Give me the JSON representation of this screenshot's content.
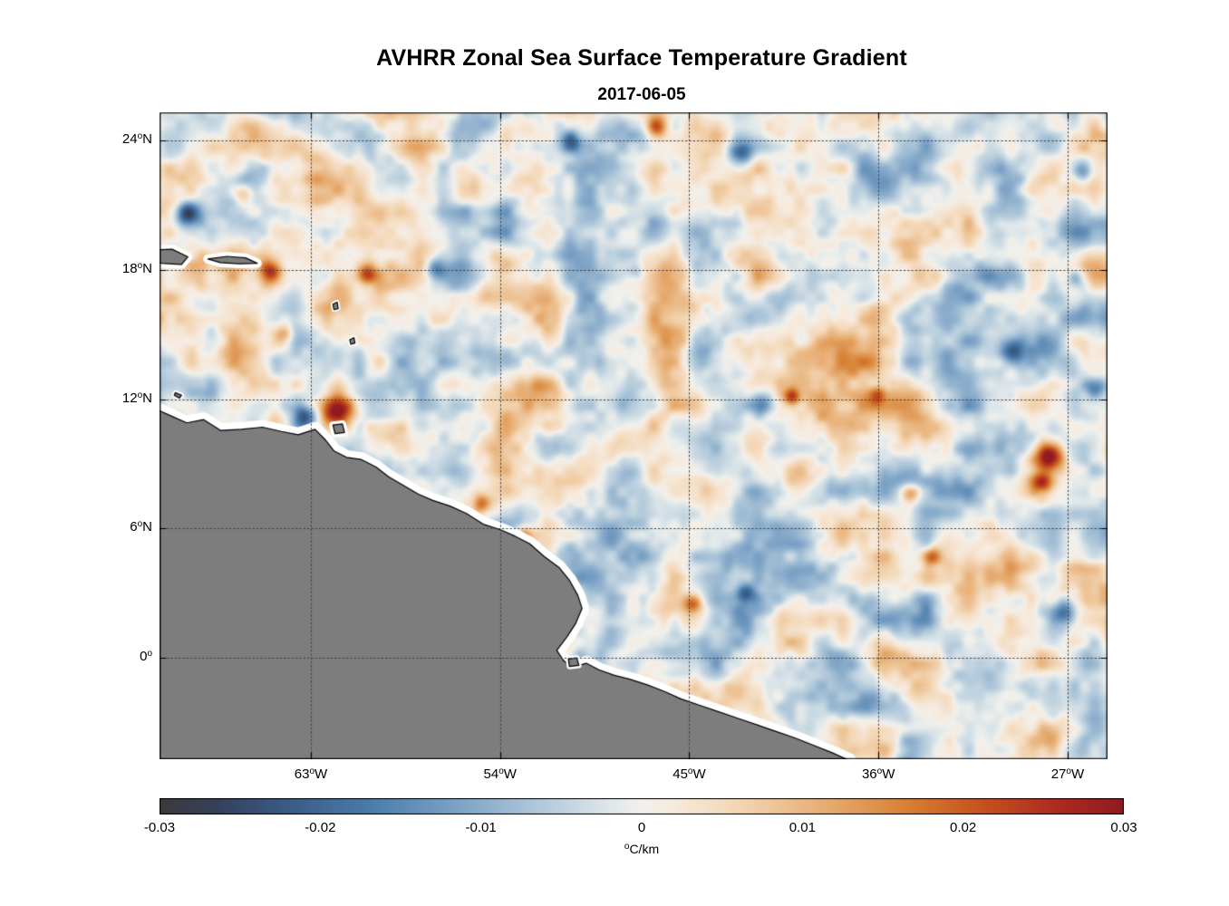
{
  "chart_data": {
    "type": "heatmap",
    "title": "AVHRR Zonal Sea Surface Temperature Gradient",
    "subtitle": "2017-06-05",
    "units": "°C/km",
    "axes": {
      "lon_range": [
        -70.2,
        -25.1
      ],
      "lat_range": [
        -4.7,
        25.3
      ],
      "x_ticks": [
        {
          "value": -63,
          "label": "63°W"
        },
        {
          "value": -54,
          "label": "54°W"
        },
        {
          "value": -45,
          "label": "45°W"
        },
        {
          "value": -36,
          "label": "36°W"
        },
        {
          "value": -27,
          "label": "27°W"
        }
      ],
      "y_ticks": [
        {
          "value": 24,
          "label": "24°N"
        },
        {
          "value": 18,
          "label": "18°N"
        },
        {
          "value": 12,
          "label": "12°N"
        },
        {
          "value": 6,
          "label": "6°N"
        },
        {
          "value": 0,
          "label": "0°"
        }
      ],
      "grid": true,
      "grid_color": "#404040"
    },
    "colorbar": {
      "min": -0.03,
      "max": 0.03,
      "tick_labels": [
        "-0.03",
        "-0.02",
        "-0.01",
        "0",
        "0.01",
        "0.02",
        "0.03"
      ],
      "units": "°C/km",
      "stops": [
        [
          0.0,
          "#3a3a3a"
        ],
        [
          0.06,
          "#34405c"
        ],
        [
          0.14,
          "#3a5e88"
        ],
        [
          0.22,
          "#4b7cab"
        ],
        [
          0.31,
          "#7da3c6"
        ],
        [
          0.4,
          "#b4cbdc"
        ],
        [
          0.47,
          "#e0e8ea"
        ],
        [
          0.5,
          "#f2f1ec"
        ],
        [
          0.53,
          "#f7ebdf"
        ],
        [
          0.6,
          "#f3d6b4"
        ],
        [
          0.69,
          "#e7ad72"
        ],
        [
          0.77,
          "#d98336"
        ],
        [
          0.85,
          "#c6531e"
        ],
        [
          0.93,
          "#ad2b20"
        ],
        [
          1.0,
          "#8f1a1f"
        ]
      ]
    },
    "field": {
      "seed": 77,
      "amplitude": 0.018,
      "broad_amplitude": 0.004,
      "scale_deg": 2.0,
      "octaves": 3,
      "features": [
        {
          "lon": -61.7,
          "lat": 11.5,
          "amp": 0.034,
          "r": 0.75
        },
        {
          "lon": -63.3,
          "lat": 11.15,
          "amp": -0.024,
          "r": 0.6
        },
        {
          "lon": -64.9,
          "lat": 17.9,
          "amp": 0.022,
          "r": 0.55
        },
        {
          "lon": -60.4,
          "lat": 17.8,
          "amp": 0.02,
          "r": 0.5
        },
        {
          "lon": -64.3,
          "lat": 14.9,
          "amp": 0.016,
          "r": 0.5
        },
        {
          "lon": -68.9,
          "lat": 20.6,
          "amp": -0.022,
          "r": 0.55
        },
        {
          "lon": -66.2,
          "lat": 21.4,
          "amp": 0.014,
          "r": 0.5
        },
        {
          "lon": -27.9,
          "lat": 9.3,
          "amp": 0.032,
          "r": 0.65
        },
        {
          "lon": -28.2,
          "lat": 8.1,
          "amp": 0.018,
          "r": 0.5
        },
        {
          "lon": -29.6,
          "lat": 14.2,
          "amp": -0.018,
          "r": 0.55
        },
        {
          "lon": -26.6,
          "lat": 17.6,
          "amp": -0.016,
          "r": 0.5
        },
        {
          "lon": -26.3,
          "lat": 22.6,
          "amp": -0.016,
          "r": 0.5
        },
        {
          "lon": -25.7,
          "lat": 12.6,
          "amp": -0.018,
          "r": 0.5
        },
        {
          "lon": -27.1,
          "lat": 2.1,
          "amp": -0.018,
          "r": 0.6
        },
        {
          "lon": -33.5,
          "lat": 4.7,
          "amp": 0.02,
          "r": 0.45
        },
        {
          "lon": -34.5,
          "lat": 7.6,
          "amp": 0.02,
          "r": 0.5
        },
        {
          "lon": -41.6,
          "lat": 11.7,
          "amp": -0.02,
          "r": 0.55
        },
        {
          "lon": -40.1,
          "lat": 12.1,
          "amp": 0.018,
          "r": 0.4
        },
        {
          "lon": -36.1,
          "lat": 12.2,
          "amp": 0.016,
          "r": 0.4
        },
        {
          "lon": -44.8,
          "lat": 2.5,
          "amp": 0.02,
          "r": 0.45
        },
        {
          "lon": -42.3,
          "lat": 3.0,
          "amp": -0.015,
          "r": 0.45
        },
        {
          "lon": -46.5,
          "lat": 24.6,
          "amp": 0.018,
          "r": 0.5
        },
        {
          "lon": -42.6,
          "lat": 23.4,
          "amp": -0.02,
          "r": 0.55
        },
        {
          "lon": -50.6,
          "lat": 23.9,
          "amp": -0.018,
          "r": 0.5
        },
        {
          "lon": -54.9,
          "lat": 7.15,
          "amp": 0.018,
          "r": 0.45
        },
        {
          "lon": -52.9,
          "lat": 5.6,
          "amp": 0.022,
          "r": 0.45
        },
        {
          "lon": -57.1,
          "lat": 18.1,
          "amp": -0.015,
          "r": 0.5
        },
        {
          "lon": -47.6,
          "lat": 17.9,
          "amp": -0.013,
          "r": 0.45
        }
      ]
    },
    "land": {
      "color": "#7d7d7d",
      "outline": "#000000",
      "coast_halo": "#ffffff",
      "coastline": [
        [
          -70.4,
          11.55
        ],
        [
          -69.6,
          11.2
        ],
        [
          -68.9,
          10.9
        ],
        [
          -68.1,
          11.05
        ],
        [
          -67.3,
          10.55
        ],
        [
          -66.3,
          10.6
        ],
        [
          -65.3,
          10.7
        ],
        [
          -64.4,
          10.5
        ],
        [
          -63.6,
          10.35
        ],
        [
          -62.8,
          10.6
        ],
        [
          -62.3,
          10.1
        ],
        [
          -61.9,
          9.6
        ],
        [
          -61.3,
          9.3
        ],
        [
          -60.6,
          9.2
        ],
        [
          -59.9,
          8.85
        ],
        [
          -59.3,
          8.4
        ],
        [
          -58.6,
          8.0
        ],
        [
          -57.9,
          7.6
        ],
        [
          -57.2,
          7.3
        ],
        [
          -56.4,
          7.05
        ],
        [
          -55.6,
          6.7
        ],
        [
          -54.8,
          6.2
        ],
        [
          -54.0,
          5.95
        ],
        [
          -53.3,
          5.65
        ],
        [
          -52.6,
          5.3
        ],
        [
          -51.9,
          4.7
        ],
        [
          -51.2,
          4.2
        ],
        [
          -50.7,
          3.6
        ],
        [
          -50.3,
          2.9
        ],
        [
          -50.1,
          2.3
        ],
        [
          -50.4,
          1.6
        ],
        [
          -50.8,
          1.0
        ],
        [
          -51.3,
          0.35
        ],
        [
          -51.0,
          -0.1
        ],
        [
          -50.6,
          -0.45
        ],
        [
          -49.9,
          -0.25
        ],
        [
          -49.3,
          -0.55
        ],
        [
          -48.6,
          -0.8
        ],
        [
          -47.8,
          -1.0
        ],
        [
          -47.0,
          -1.25
        ],
        [
          -46.2,
          -1.55
        ],
        [
          -45.4,
          -1.9
        ],
        [
          -44.5,
          -2.2
        ],
        [
          -43.6,
          -2.5
        ],
        [
          -42.7,
          -2.8
        ],
        [
          -41.8,
          -3.1
        ],
        [
          -40.9,
          -3.4
        ],
        [
          -40.0,
          -3.7
        ],
        [
          -39.1,
          -4.05
        ],
        [
          -38.2,
          -4.4
        ],
        [
          -37.4,
          -4.75
        ],
        [
          -36.9,
          -5.4
        ],
        [
          -36.6,
          -6.5
        ],
        [
          -71.5,
          -6.5
        ],
        [
          -71.5,
          11.0
        ]
      ],
      "islands": [
        {
          "name": "puerto-rico",
          "halo": 10,
          "points": [
            [
              -70.8,
              18.9
            ],
            [
              -69.6,
              18.95
            ],
            [
              -68.85,
              18.6
            ],
            [
              -69.15,
              18.25
            ],
            [
              -70.1,
              18.3
            ],
            [
              -70.8,
              18.5
            ]
          ]
        },
        {
          "name": "island-chain",
          "halo": 10,
          "points": [
            [
              -67.9,
              18.5
            ],
            [
              -67.0,
              18.62
            ],
            [
              -66.1,
              18.55
            ],
            [
              -65.55,
              18.3
            ],
            [
              -66.4,
              18.28
            ],
            [
              -67.3,
              18.33
            ]
          ]
        },
        {
          "name": "trinidad",
          "halo": 8,
          "points": [
            [
              -61.95,
              10.8
            ],
            [
              -61.5,
              10.85
            ],
            [
              -61.4,
              10.45
            ],
            [
              -61.85,
              10.4
            ]
          ]
        },
        {
          "name": "marajo",
          "halo": 6,
          "points": [
            [
              -50.75,
              -0.05
            ],
            [
              -50.35,
              0.0
            ],
            [
              -50.25,
              -0.35
            ],
            [
              -50.7,
              -0.4
            ]
          ]
        },
        {
          "name": "guadeloupe",
          "halo": 5,
          "points": [
            [
              -61.95,
              16.4
            ],
            [
              -61.75,
              16.5
            ],
            [
              -61.7,
              16.2
            ],
            [
              -61.9,
              16.15
            ]
          ]
        },
        {
          "name": "martinique",
          "halo": 5,
          "points": [
            [
              -61.15,
              14.75
            ],
            [
              -60.95,
              14.85
            ],
            [
              -60.9,
              14.6
            ],
            [
              -61.1,
              14.55
            ]
          ]
        },
        {
          "name": "bonaire",
          "halo": 5,
          "points": [
            [
              -69.45,
              12.3
            ],
            [
              -69.15,
              12.18
            ],
            [
              -69.25,
              12.05
            ],
            [
              -69.5,
              12.18
            ]
          ]
        }
      ]
    }
  }
}
